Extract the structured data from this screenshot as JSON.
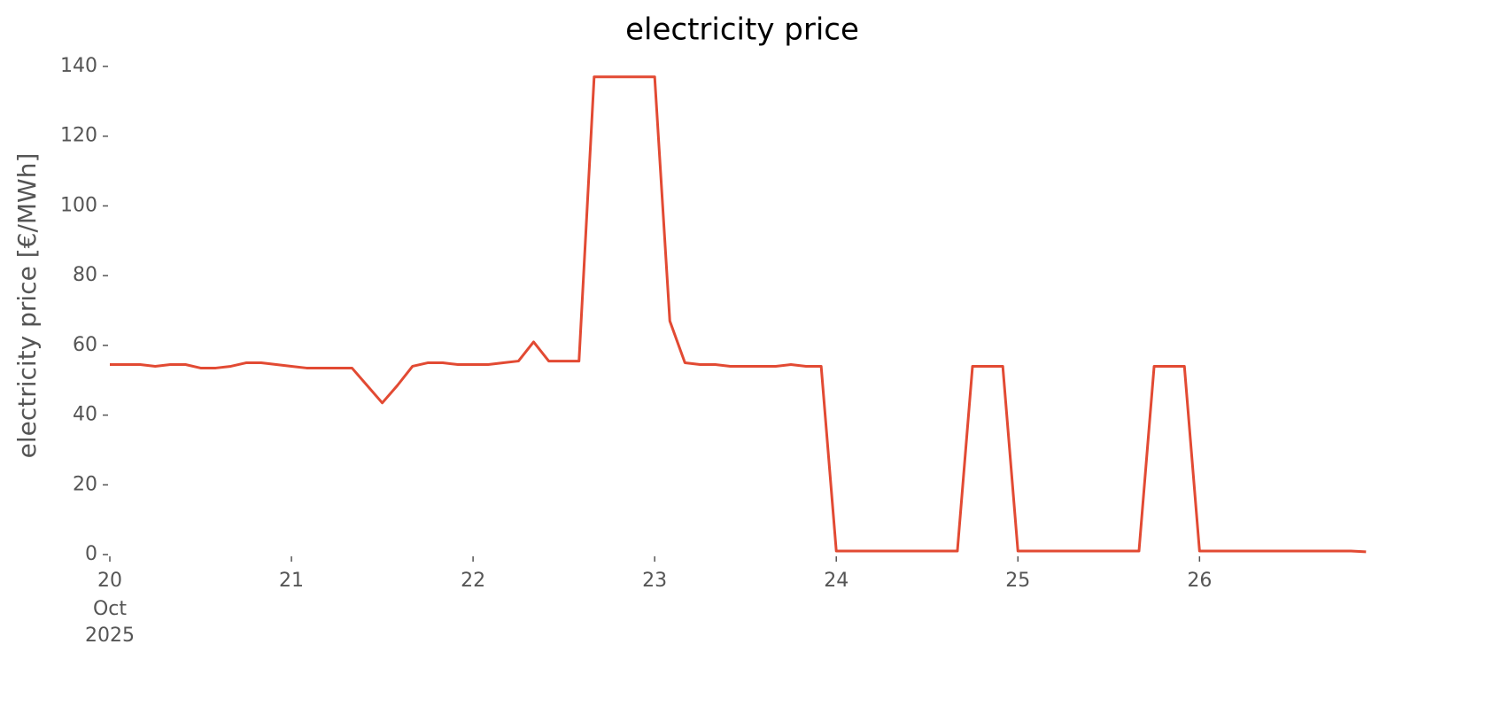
{
  "chart_data": {
    "type": "line",
    "title": "electricity price",
    "y_label": "electricity price [€/MWh]",
    "x": [
      "2025-10-20 00:00",
      "2025-10-20 02:00",
      "2025-10-20 04:00",
      "2025-10-20 06:00",
      "2025-10-20 08:00",
      "2025-10-20 10:00",
      "2025-10-20 12:00",
      "2025-10-20 14:00",
      "2025-10-20 16:00",
      "2025-10-20 18:00",
      "2025-10-20 20:00",
      "2025-10-20 22:00",
      "2025-10-21 00:00",
      "2025-10-21 02:00",
      "2025-10-21 04:00",
      "2025-10-21 06:00",
      "2025-10-21 08:00",
      "2025-10-21 10:00",
      "2025-10-21 12:00",
      "2025-10-21 14:00",
      "2025-10-21 16:00",
      "2025-10-21 18:00",
      "2025-10-21 20:00",
      "2025-10-21 22:00",
      "2025-10-22 00:00",
      "2025-10-22 02:00",
      "2025-10-22 04:00",
      "2025-10-22 06:00",
      "2025-10-22 08:00",
      "2025-10-22 10:00",
      "2025-10-22 12:00",
      "2025-10-22 14:00",
      "2025-10-22 16:00",
      "2025-10-22 18:00",
      "2025-10-22 20:00",
      "2025-10-22 22:00",
      "2025-10-23 00:00",
      "2025-10-23 02:00",
      "2025-10-23 04:00",
      "2025-10-23 06:00",
      "2025-10-23 08:00",
      "2025-10-23 10:00",
      "2025-10-23 12:00",
      "2025-10-23 14:00",
      "2025-10-23 16:00",
      "2025-10-23 18:00",
      "2025-10-23 20:00",
      "2025-10-23 22:00",
      "2025-10-24 00:00",
      "2025-10-24 02:00",
      "2025-10-24 04:00",
      "2025-10-24 06:00",
      "2025-10-24 08:00",
      "2025-10-24 10:00",
      "2025-10-24 12:00",
      "2025-10-24 14:00",
      "2025-10-24 16:00",
      "2025-10-24 18:00",
      "2025-10-24 20:00",
      "2025-10-24 22:00",
      "2025-10-25 00:00",
      "2025-10-25 02:00",
      "2025-10-25 04:00",
      "2025-10-25 06:00",
      "2025-10-25 08:00",
      "2025-10-25 10:00",
      "2025-10-25 12:00",
      "2025-10-25 14:00",
      "2025-10-25 16:00",
      "2025-10-25 18:00",
      "2025-10-25 20:00",
      "2025-10-25 22:00",
      "2025-10-26 00:00",
      "2025-10-26 02:00",
      "2025-10-26 04:00",
      "2025-10-26 06:00",
      "2025-10-26 08:00",
      "2025-10-26 10:00",
      "2025-10-26 12:00",
      "2025-10-26 14:00",
      "2025-10-26 16:00",
      "2025-10-26 18:00",
      "2025-10-26 20:00",
      "2025-10-26 22:00"
    ],
    "series": [
      {
        "name": "electricity price",
        "color": "#e24a33",
        "values": [
          54.5,
          54.5,
          54.5,
          54,
          54.5,
          54.5,
          53.5,
          53.5,
          54,
          55,
          55,
          54.5,
          54,
          53.5,
          53.5,
          53.5,
          53.5,
          48.5,
          43.5,
          48.5,
          54,
          55,
          55,
          54.5,
          54.5,
          54.5,
          55,
          55.5,
          61,
          55.5,
          55.5,
          55.5,
          137,
          137,
          137,
          137,
          137,
          67,
          55,
          54.5,
          54.5,
          54,
          54,
          54,
          54,
          54.5,
          54,
          54,
          1,
          1,
          1,
          1,
          1,
          1,
          1,
          1,
          1,
          54,
          54,
          54,
          1,
          1,
          1,
          1,
          1,
          1,
          1,
          1,
          1,
          54,
          54,
          54,
          1,
          1,
          1,
          1,
          1,
          1,
          1,
          1,
          1,
          1,
          1,
          0.8
        ]
      }
    ],
    "xlim": [
      "2025-10-20 00:00",
      "2025-10-26 22:40"
    ],
    "xticks": [
      {
        "value": "2025-10-20 00:00",
        "label": "20"
      },
      {
        "value": "2025-10-21 00:00",
        "label": "21"
      },
      {
        "value": "2025-10-22 00:00",
        "label": "22"
      },
      {
        "value": "2025-10-23 00:00",
        "label": "23"
      },
      {
        "value": "2025-10-24 00:00",
        "label": "24"
      },
      {
        "value": "2025-10-25 00:00",
        "label": "25"
      },
      {
        "value": "2025-10-26 00:00",
        "label": "26"
      }
    ],
    "x_sublabels": [
      "Oct",
      "2025"
    ],
    "ylim": [
      0,
      140
    ],
    "yticks": [
      0,
      20,
      40,
      60,
      80,
      100,
      120,
      140
    ],
    "grid": false
  }
}
